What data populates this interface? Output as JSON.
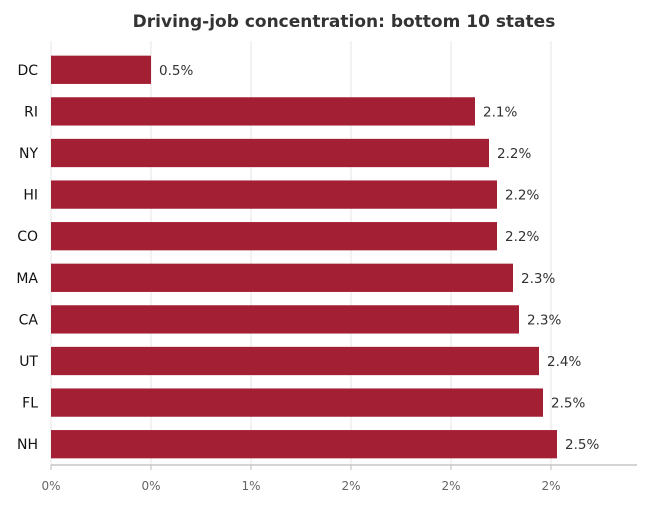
{
  "chart_data": {
    "type": "bar",
    "orientation": "horizontal",
    "title": "Driving-job concentration: bottom 10 states",
    "categories": [
      "DC",
      "RI",
      "NY",
      "HI",
      "CO",
      "MA",
      "CA",
      "UT",
      "FL",
      "NH"
    ],
    "values": [
      0.5,
      2.12,
      2.19,
      2.23,
      2.23,
      2.31,
      2.34,
      2.44,
      2.46,
      2.53
    ],
    "value_labels": [
      "0.5%",
      "2.1%",
      "2.2%",
      "2.2%",
      "2.2%",
      "2.3%",
      "2.3%",
      "2.4%",
      "2.5%",
      "2.5%"
    ],
    "xlim": [
      0,
      2.93
    ],
    "x_ticks": [
      0,
      0.5,
      1.0,
      1.5,
      2.0,
      2.5
    ],
    "x_tick_labels": [
      "0%",
      "0%",
      "1%",
      "2%",
      "2%",
      "2%"
    ],
    "bar_color": "#a31f34",
    "grid": "vertical",
    "xlabel": "",
    "ylabel": ""
  }
}
